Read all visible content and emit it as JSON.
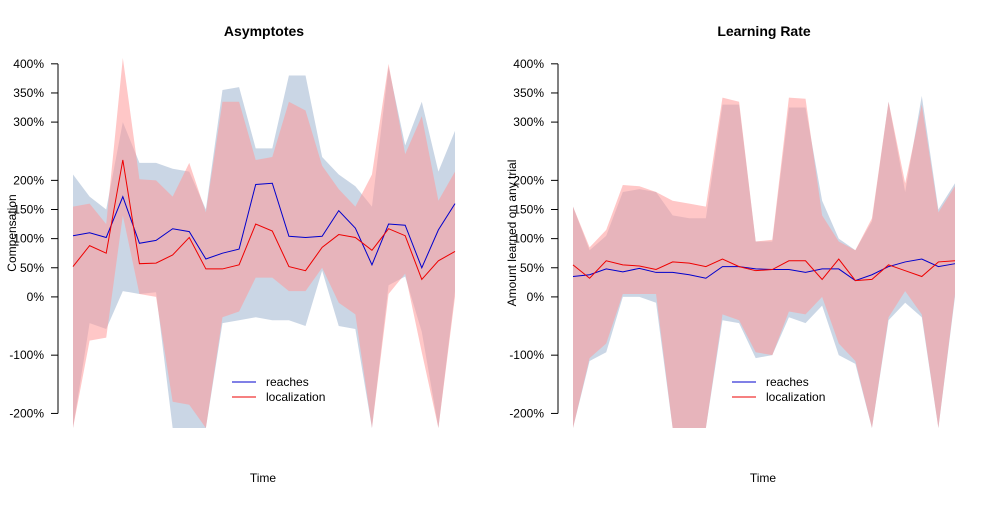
{
  "colors": {
    "reaches_line": "#0000cc",
    "localization_line": "#ee0000",
    "reaches_band": "#b8c8dc",
    "localization_band": "#ff9999",
    "axis": "#000000"
  },
  "chart_data": [
    {
      "type": "line",
      "title": "Asymptotes",
      "xlabel": "Time",
      "ylabel": "Compensation",
      "y_ticks": [
        {
          "v": 4.0,
          "label": "400%"
        },
        {
          "v": 3.5,
          "label": "350%"
        },
        {
          "v": 3.0,
          "label": "300%"
        },
        {
          "v": 2.0,
          "label": "200%"
        },
        {
          "v": 1.5,
          "label": "150%"
        },
        {
          "v": 1.0,
          "label": "100%"
        },
        {
          "v": 0.5,
          "label": "50%"
        },
        {
          "v": 0.0,
          "label": "0%"
        },
        {
          "v": -1.0,
          "label": "-100%"
        },
        {
          "v": -2.0,
          "label": "-200%"
        }
      ],
      "ylim": [
        -2.25,
        4.1
      ],
      "xlim": [
        1,
        33
      ],
      "grid": false,
      "legend_placement": "bottom-center",
      "series": [
        {
          "name": "reaches",
          "color_key": "reaches_line",
          "values": [
            1.05,
            1.1,
            1.02,
            1.72,
            0.92,
            0.97,
            1.17,
            1.12,
            0.65,
            0.75,
            0.82,
            1.93,
            1.95,
            1.04,
            1.02,
            1.04,
            1.48,
            1.18,
            0.55,
            1.25,
            1.23,
            0.5,
            1.15,
            1.6
          ],
          "lower": [
            -2.25,
            -0.45,
            -0.55,
            0.1,
            0.05,
            0.08,
            -2.25,
            -2.25,
            -2.25,
            -0.45,
            -0.4,
            -0.35,
            -0.4,
            -0.4,
            -0.5,
            0.45,
            -0.5,
            -0.55,
            -2.25,
            0.2,
            0.35,
            -0.6,
            -2.25,
            0.1
          ],
          "upper": [
            2.1,
            1.72,
            1.5,
            3.0,
            2.3,
            2.3,
            2.2,
            2.15,
            1.5,
            3.55,
            3.6,
            2.55,
            2.55,
            3.8,
            3.8,
            2.4,
            2.1,
            1.9,
            1.55,
            3.95,
            2.6,
            3.35,
            2.15,
            2.85
          ]
        },
        {
          "name": "localization",
          "color_key": "localization_line",
          "values": [
            0.52,
            0.88,
            0.75,
            2.35,
            0.57,
            0.58,
            0.72,
            1.02,
            0.48,
            0.48,
            0.55,
            1.25,
            1.13,
            0.52,
            0.45,
            0.85,
            1.07,
            1.02,
            0.8,
            1.17,
            1.05,
            0.3,
            0.62,
            0.78
          ],
          "lower": [
            -2.25,
            -0.75,
            -0.7,
            1.4,
            0.05,
            0.0,
            -1.8,
            -1.85,
            -2.25,
            -0.35,
            -0.25,
            0.33,
            0.33,
            0.1,
            0.1,
            0.5,
            -0.1,
            -0.3,
            -2.25,
            0.05,
            0.4,
            -0.95,
            -2.25,
            0.0
          ],
          "upper": [
            1.55,
            1.6,
            1.25,
            4.1,
            2.02,
            2.0,
            1.72,
            2.3,
            1.45,
            3.35,
            3.35,
            2.35,
            2.4,
            3.35,
            3.2,
            2.25,
            1.85,
            1.55,
            2.1,
            4.0,
            2.45,
            3.1,
            1.65,
            2.15
          ]
        }
      ]
    },
    {
      "type": "line",
      "title": "Learning Rate",
      "xlabel": "Time",
      "ylabel": "Amount learned on any trial",
      "y_ticks": [
        {
          "v": 4.0,
          "label": "400%"
        },
        {
          "v": 3.5,
          "label": "350%"
        },
        {
          "v": 3.0,
          "label": "300%"
        },
        {
          "v": 2.0,
          "label": "200%"
        },
        {
          "v": 1.5,
          "label": "150%"
        },
        {
          "v": 1.0,
          "label": "100%"
        },
        {
          "v": 0.5,
          "label": "50%"
        },
        {
          "v": 0.0,
          "label": "0%"
        },
        {
          "v": -1.0,
          "label": "-100%"
        },
        {
          "v": -2.0,
          "label": "-200%"
        }
      ],
      "ylim": [
        -2.25,
        4.1
      ],
      "xlim": [
        1,
        33
      ],
      "grid": false,
      "legend_placement": "bottom-center",
      "series": [
        {
          "name": "reaches",
          "color_key": "reaches_line",
          "values": [
            0.35,
            0.38,
            0.48,
            0.43,
            0.49,
            0.42,
            0.42,
            0.38,
            0.32,
            0.52,
            0.52,
            0.48,
            0.47,
            0.47,
            0.42,
            0.48,
            0.48,
            0.28,
            0.38,
            0.52,
            0.6,
            0.65,
            0.52,
            0.57
          ],
          "lower": [
            -2.25,
            -1.1,
            -0.95,
            0.0,
            0.0,
            -0.1,
            -2.25,
            -2.25,
            -2.25,
            -0.4,
            -0.45,
            -1.05,
            -1.0,
            -0.35,
            -0.45,
            -0.15,
            -1.0,
            -1.15,
            -2.25,
            -0.4,
            -0.1,
            -0.35,
            -2.25,
            0.0
          ],
          "upper": [
            1.55,
            0.8,
            1.05,
            1.8,
            1.85,
            1.8,
            1.4,
            1.35,
            1.35,
            3.3,
            3.3,
            0.95,
            0.95,
            3.25,
            3.25,
            1.65,
            1.0,
            0.8,
            1.3,
            3.35,
            1.8,
            3.45,
            1.5,
            1.95
          ]
        },
        {
          "name": "localization",
          "color_key": "localization_line",
          "values": [
            0.55,
            0.32,
            0.62,
            0.55,
            0.53,
            0.47,
            0.6,
            0.58,
            0.52,
            0.65,
            0.52,
            0.45,
            0.47,
            0.62,
            0.62,
            0.3,
            0.65,
            0.28,
            0.3,
            0.55,
            0.45,
            0.35,
            0.6,
            0.62
          ],
          "lower": [
            -2.25,
            -1.05,
            -0.8,
            0.05,
            0.05,
            0.05,
            -2.25,
            -2.25,
            -2.25,
            -0.3,
            -0.4,
            -0.95,
            -1.0,
            -0.25,
            -0.3,
            0.0,
            -0.8,
            -1.1,
            -2.25,
            -0.35,
            0.1,
            -0.3,
            -2.25,
            0.05
          ],
          "upper": [
            1.55,
            0.85,
            1.15,
            1.92,
            1.9,
            1.8,
            1.65,
            1.6,
            1.55,
            3.42,
            3.35,
            0.95,
            0.98,
            3.42,
            3.4,
            1.4,
            0.95,
            0.8,
            1.35,
            3.35,
            1.95,
            3.3,
            1.45,
            1.9
          ]
        }
      ]
    }
  ]
}
